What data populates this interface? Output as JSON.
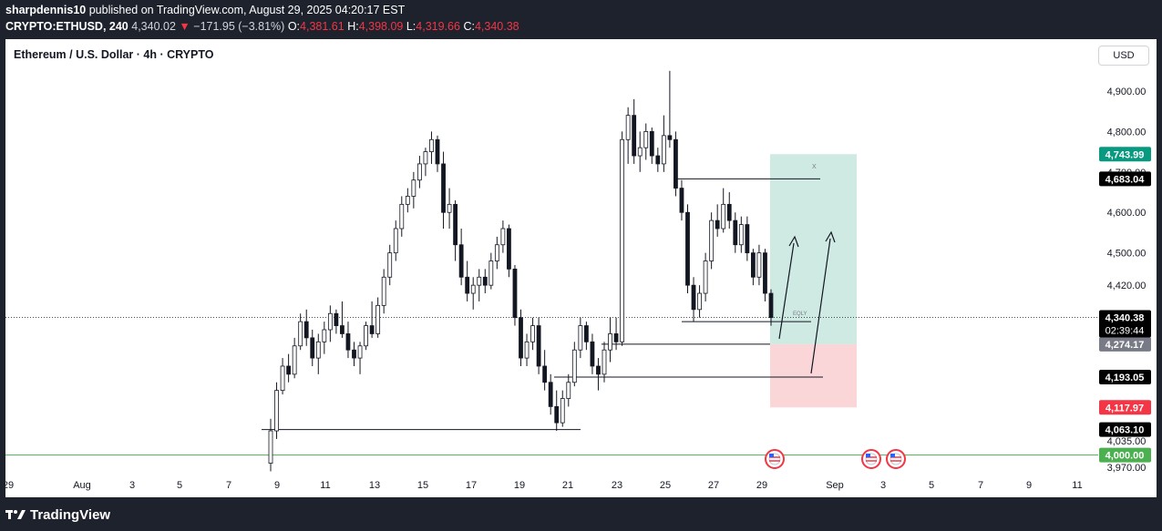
{
  "header": {
    "publisher": "sharpdennis10",
    "published_text": " published on TradingView.com, August 29, 2025 04:20:17 EST",
    "symbol": "CRYPTO:ETHUSD, 240",
    "last": "4,340.02",
    "change_arrow": "▼",
    "change": "−171.95 (−3.81%)",
    "o_label": "O:",
    "o": "4,381.61",
    "h_label": "H:",
    "h": "4,398.09",
    "l_label": "L:",
    "l": "4,319.66",
    "c_label": "C:",
    "c": "4,340.38"
  },
  "chart_title": "Ethereum / U.S. Dollar · 4h · CRYPTO",
  "currency_button": "USD",
  "footer_brand": "TradingView",
  "colors": {
    "up": "#ffffff",
    "down": "#131722",
    "profit_zone": "#cfeae3",
    "loss_zone": "#fad6d9",
    "target_badge": "#089981",
    "stop_badge": "#f23645",
    "support_line": "#4caf50"
  },
  "chart_data": {
    "type": "candlestick",
    "y_range": [
      3970,
      4970
    ],
    "price_scale": [
      "4,900.00",
      "4,800.00",
      "4,700.00",
      "4,600.00",
      "4,500.00",
      "4,420.00",
      "4,035.00",
      "3,970.00"
    ],
    "x_axis_labels": [
      "29",
      "Aug",
      "3",
      "5",
      "7",
      "9",
      "11",
      "13",
      "15",
      "17",
      "19",
      "21",
      "23",
      "25",
      "27",
      "29",
      "Sep",
      "3",
      "5",
      "7",
      "9",
      "11"
    ],
    "price_labels": {
      "target": "4,743.99",
      "level_4683": "4,683.04",
      "current": "4,340.38",
      "countdown": "02:39:44",
      "entry": "4,274.17",
      "level_4193": "4,193.05",
      "stop": "4,117.97",
      "level_4063": "4,063.10",
      "support": "4,000.00"
    },
    "annotations": {
      "x_mark": "X",
      "eqly_mark": "EQLY"
    },
    "horizontal_levels": [
      {
        "price": 4683.04
      },
      {
        "price": 4330
      },
      {
        "price": 4274.17
      },
      {
        "price": 4193.05
      },
      {
        "price": 4063.1
      },
      {
        "price": 4000.0
      }
    ],
    "position": {
      "type": "long",
      "entry": 4274.17,
      "target": 4743.99,
      "stop": 4117.97
    },
    "candles_ohlc": [
      [
        3980,
        4090,
        3960,
        4060
      ],
      [
        4060,
        4180,
        4040,
        4160
      ],
      [
        4160,
        4240,
        4150,
        4220
      ],
      [
        4220,
        4250,
        4180,
        4200
      ],
      [
        4200,
        4290,
        4190,
        4270
      ],
      [
        4270,
        4350,
        4260,
        4330
      ],
      [
        4330,
        4360,
        4270,
        4290
      ],
      [
        4290,
        4310,
        4220,
        4240
      ],
      [
        4240,
        4300,
        4200,
        4280
      ],
      [
        4280,
        4330,
        4250,
        4310
      ],
      [
        4310,
        4370,
        4280,
        4350
      ],
      [
        4350,
        4360,
        4300,
        4320
      ],
      [
        4320,
        4380,
        4290,
        4300
      ],
      [
        4300,
        4330,
        4240,
        4260
      ],
      [
        4260,
        4280,
        4220,
        4240
      ],
      [
        4240,
        4280,
        4200,
        4270
      ],
      [
        4270,
        4330,
        4260,
        4320
      ],
      [
        4320,
        4380,
        4290,
        4300
      ],
      [
        4300,
        4390,
        4290,
        4370
      ],
      [
        4370,
        4460,
        4350,
        4440
      ],
      [
        4440,
        4520,
        4420,
        4500
      ],
      [
        4500,
        4580,
        4480,
        4560
      ],
      [
        4560,
        4640,
        4540,
        4620
      ],
      [
        4620,
        4660,
        4600,
        4640
      ],
      [
        4640,
        4700,
        4610,
        4680
      ],
      [
        4680,
        4740,
        4660,
        4720
      ],
      [
        4720,
        4760,
        4690,
        4750
      ],
      [
        4750,
        4800,
        4720,
        4780
      ],
      [
        4780,
        4790,
        4700,
        4720
      ],
      [
        4720,
        4750,
        4560,
        4600
      ],
      [
        4600,
        4660,
        4560,
        4620
      ],
      [
        4620,
        4630,
        4480,
        4520
      ],
      [
        4520,
        4560,
        4420,
        4440
      ],
      [
        4440,
        4480,
        4380,
        4400
      ],
      [
        4400,
        4440,
        4360,
        4420
      ],
      [
        4420,
        4460,
        4380,
        4440
      ],
      [
        4440,
        4460,
        4400,
        4420
      ],
      [
        4420,
        4500,
        4410,
        4480
      ],
      [
        4480,
        4540,
        4460,
        4520
      ],
      [
        4520,
        4580,
        4500,
        4560
      ],
      [
        4560,
        4570,
        4440,
        4460
      ],
      [
        4460,
        4470,
        4320,
        4340
      ],
      [
        4340,
        4360,
        4220,
        4240
      ],
      [
        4240,
        4300,
        4220,
        4280
      ],
      [
        4280,
        4340,
        4260,
        4320
      ],
      [
        4320,
        4340,
        4200,
        4220
      ],
      [
        4220,
        4260,
        4160,
        4180
      ],
      [
        4180,
        4200,
        4100,
        4120
      ],
      [
        4120,
        4160,
        4060,
        4080
      ],
      [
        4080,
        4160,
        4070,
        4140
      ],
      [
        4140,
        4200,
        4120,
        4180
      ],
      [
        4180,
        4280,
        4170,
        4260
      ],
      [
        4260,
        4340,
        4240,
        4320
      ],
      [
        4320,
        4330,
        4260,
        4280
      ],
      [
        4280,
        4300,
        4200,
        4220
      ],
      [
        4220,
        4240,
        4160,
        4200
      ],
      [
        4200,
        4280,
        4180,
        4260
      ],
      [
        4260,
        4340,
        4230,
        4300
      ],
      [
        4300,
        4340,
        4260,
        4280
      ],
      [
        4280,
        4800,
        4270,
        4780
      ],
      [
        4780,
        4860,
        4720,
        4840
      ],
      [
        4840,
        4880,
        4720,
        4740
      ],
      [
        4740,
        4800,
        4700,
        4760
      ],
      [
        4760,
        4820,
        4730,
        4800
      ],
      [
        4800,
        4810,
        4720,
        4740
      ],
      [
        4740,
        4760,
        4700,
        4720
      ],
      [
        4720,
        4840,
        4700,
        4790
      ],
      [
        4790,
        4950,
        4760,
        4780
      ],
      [
        4780,
        4800,
        4640,
        4660
      ],
      [
        4660,
        4680,
        4580,
        4600
      ],
      [
        4600,
        4620,
        4400,
        4420
      ],
      [
        4420,
        4440,
        4330,
        4360
      ],
      [
        4360,
        4420,
        4340,
        4400
      ],
      [
        4400,
        4500,
        4380,
        4480
      ],
      [
        4480,
        4600,
        4460,
        4580
      ],
      [
        4580,
        4620,
        4540,
        4560
      ],
      [
        4560,
        4660,
        4550,
        4620
      ],
      [
        4620,
        4650,
        4560,
        4580
      ],
      [
        4580,
        4600,
        4500,
        4520
      ],
      [
        4520,
        4590,
        4500,
        4570
      ],
      [
        4570,
        4590,
        4480,
        4500
      ],
      [
        4500,
        4510,
        4420,
        4440
      ],
      [
        4440,
        4520,
        4420,
        4500
      ],
      [
        4500,
        4510,
        4380,
        4400
      ],
      [
        4400,
        4410,
        4320,
        4340
      ]
    ]
  }
}
